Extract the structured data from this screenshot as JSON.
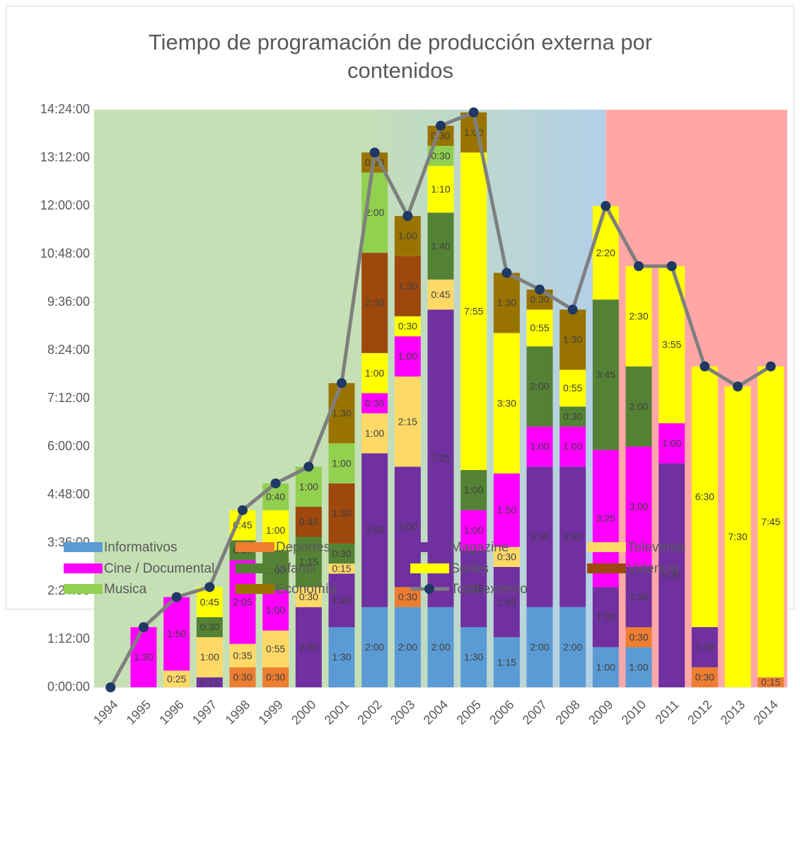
{
  "chart_data": {
    "type": "stacked-bar-line",
    "title": "Tiempo de programación de producción externa por contenidos",
    "categories": [
      "1994",
      "1995",
      "1996",
      "1997",
      "1998",
      "1999",
      "2000",
      "2001",
      "2002",
      "2003",
      "2004",
      "2005",
      "2006",
      "2007",
      "2008",
      "2009",
      "2010",
      "2011",
      "2012",
      "2013",
      "2014"
    ],
    "ylim": [
      0,
      864
    ],
    "yticks": [
      {
        "value": 0,
        "label": "0:00:00"
      },
      {
        "value": 72,
        "label": "1:12:00"
      },
      {
        "value": 144,
        "label": "2:24:00"
      },
      {
        "value": 216,
        "label": "3:36:00"
      },
      {
        "value": 288,
        "label": "4:48:00"
      },
      {
        "value": 360,
        "label": "6:00:00"
      },
      {
        "value": 432,
        "label": "7:12:00"
      },
      {
        "value": 504,
        "label": "8:24:00"
      },
      {
        "value": 576,
        "label": "9:36:00"
      },
      {
        "value": 648,
        "label": "10:48:00"
      },
      {
        "value": 720,
        "label": "12:00:00"
      },
      {
        "value": 792,
        "label": "13:12:00"
      },
      {
        "value": 864,
        "label": "14:24:00"
      }
    ],
    "series": [
      {
        "name": "Informativos",
        "color": "#5b9bd5",
        "values": [
          null,
          null,
          null,
          null,
          null,
          null,
          null,
          90,
          120,
          120,
          120,
          90,
          75,
          120,
          120,
          60,
          60,
          null,
          null,
          null,
          null
        ],
        "value_labels": [
          null,
          null,
          null,
          null,
          null,
          null,
          null,
          "1:30",
          "2:00",
          "2:00",
          "2:00",
          "1:30",
          "1:15",
          "2:00",
          "2:00",
          "1:00",
          "1:00",
          null,
          null,
          null,
          null
        ]
      },
      {
        "name": "Deportes",
        "color": "#ed7d31",
        "values": [
          null,
          null,
          null,
          null,
          30,
          30,
          null,
          null,
          null,
          30,
          null,
          null,
          null,
          null,
          null,
          null,
          30,
          null,
          30,
          null,
          15
        ],
        "value_labels": [
          null,
          null,
          null,
          null,
          "0:30",
          "0:30",
          null,
          null,
          null,
          "0:30",
          null,
          null,
          null,
          null,
          null,
          null,
          "0:30",
          null,
          "0:30",
          null,
          "0:15"
        ]
      },
      {
        "name": "Magazine",
        "color": "#7030a0",
        "values": [
          null,
          null,
          null,
          15,
          null,
          null,
          120,
          80,
          230,
          180,
          445,
          115,
          105,
          210,
          210,
          90,
          90,
          335,
          60,
          null,
          null
        ],
        "value_labels": [
          null,
          null,
          null,
          "0:15",
          null,
          null,
          "2:00",
          "1:20",
          "3:50",
          "3:00",
          "7:25",
          "1:55",
          "1:45",
          "3:30",
          "3:30",
          "1:30",
          "1:30",
          "5:35",
          "1:00",
          null,
          null
        ]
      },
      {
        "name": "Televenta",
        "color": "#ffd966",
        "values": [
          null,
          null,
          25,
          60,
          35,
          55,
          30,
          15,
          60,
          135,
          45,
          null,
          30,
          null,
          null,
          null,
          null,
          null,
          null,
          null,
          null
        ],
        "value_labels": [
          null,
          null,
          "0:25",
          "1:00",
          "0:35",
          "0:55",
          "0:30",
          "0:15",
          "1:00",
          "2:15",
          "0:45",
          null,
          "0:30",
          null,
          null,
          null,
          null,
          null,
          null,
          null,
          null
        ]
      },
      {
        "name": "Cine / Documental",
        "color": "#ff00ff",
        "values": [
          null,
          90,
          110,
          null,
          125,
          60,
          null,
          null,
          30,
          60,
          null,
          60,
          110,
          60,
          60,
          205,
          180,
          60,
          null,
          null,
          null
        ],
        "value_labels": [
          null,
          "1:30",
          "1:50",
          null,
          "2:05",
          "1:00",
          null,
          null,
          "0:30",
          "1:00",
          null,
          "1:00",
          "1:50",
          "1:00",
          "1:00",
          "3:25",
          "3:00",
          "1:00",
          null,
          null,
          null
        ]
      },
      {
        "name": "Infantil",
        "color": "#548235",
        "values": [
          null,
          null,
          null,
          30,
          30,
          60,
          75,
          30,
          null,
          null,
          100,
          60,
          null,
          120,
          30,
          225,
          120,
          null,
          null,
          null,
          null
        ],
        "value_labels": [
          null,
          null,
          null,
          "0:30",
          "0:30",
          "1:00",
          "1:15",
          "0:30",
          null,
          null,
          "1:40",
          "1:00",
          null,
          "2:00",
          "0:30",
          "3:45",
          "2:00",
          null,
          null,
          null,
          null
        ]
      },
      {
        "name": "Series",
        "color": "#ffff00",
        "values": [
          null,
          null,
          null,
          45,
          45,
          60,
          null,
          null,
          60,
          30,
          70,
          475,
          210,
          55,
          55,
          140,
          150,
          235,
          390,
          450,
          465
        ],
        "value_labels": [
          null,
          null,
          null,
          "0:45",
          "0:45",
          "1:00",
          null,
          null,
          "1:00",
          "0:30",
          "1:10",
          "7:55",
          "3:30",
          "0:55",
          "0:55",
          "2:20",
          "2:30",
          "3:55",
          "6:30",
          "7:30",
          "7:45"
        ]
      },
      {
        "name": "Videncia",
        "color": "#9e480e",
        "values": [
          null,
          null,
          null,
          null,
          null,
          null,
          45,
          90,
          150,
          90,
          null,
          null,
          null,
          null,
          null,
          null,
          null,
          null,
          null,
          null,
          null
        ],
        "value_labels": [
          null,
          null,
          null,
          null,
          null,
          null,
          "0:45",
          "1:30",
          "2:30",
          "1:30",
          null,
          null,
          null,
          null,
          null,
          null,
          null,
          null,
          null,
          null,
          null
        ]
      },
      {
        "name": "Musica",
        "color": "#92d050",
        "values": [
          null,
          null,
          null,
          null,
          null,
          40,
          60,
          60,
          120,
          null,
          30,
          null,
          null,
          null,
          null,
          null,
          null,
          null,
          null,
          null,
          null
        ],
        "value_labels": [
          null,
          null,
          null,
          null,
          null,
          "0:40",
          "1:00",
          "1:00",
          "2:00",
          null,
          "0:30",
          null,
          null,
          null,
          null,
          null,
          null,
          null,
          null,
          null,
          null
        ]
      },
      {
        "name": "Economía",
        "color": "#997300",
        "values": [
          null,
          null,
          null,
          null,
          null,
          null,
          null,
          90,
          30,
          60,
          30,
          60,
          90,
          30,
          90,
          null,
          null,
          null,
          null,
          null,
          null
        ],
        "value_labels": [
          null,
          null,
          null,
          null,
          null,
          null,
          null,
          "1:30",
          "0:30",
          "1:00",
          "0:30",
          "1:00",
          "1:30",
          "0:30",
          "1:30",
          null,
          null,
          null,
          null,
          null,
          null
        ]
      },
      {
        "name": "Total externo",
        "type": "line",
        "color": "#7f7f7f",
        "marker_color": "#1f3864",
        "values": [
          0,
          90,
          135,
          150,
          265,
          305,
          330,
          455,
          800,
          705,
          840,
          860,
          620,
          595,
          565,
          720,
          630,
          630,
          480,
          450,
          480
        ]
      }
    ]
  }
}
